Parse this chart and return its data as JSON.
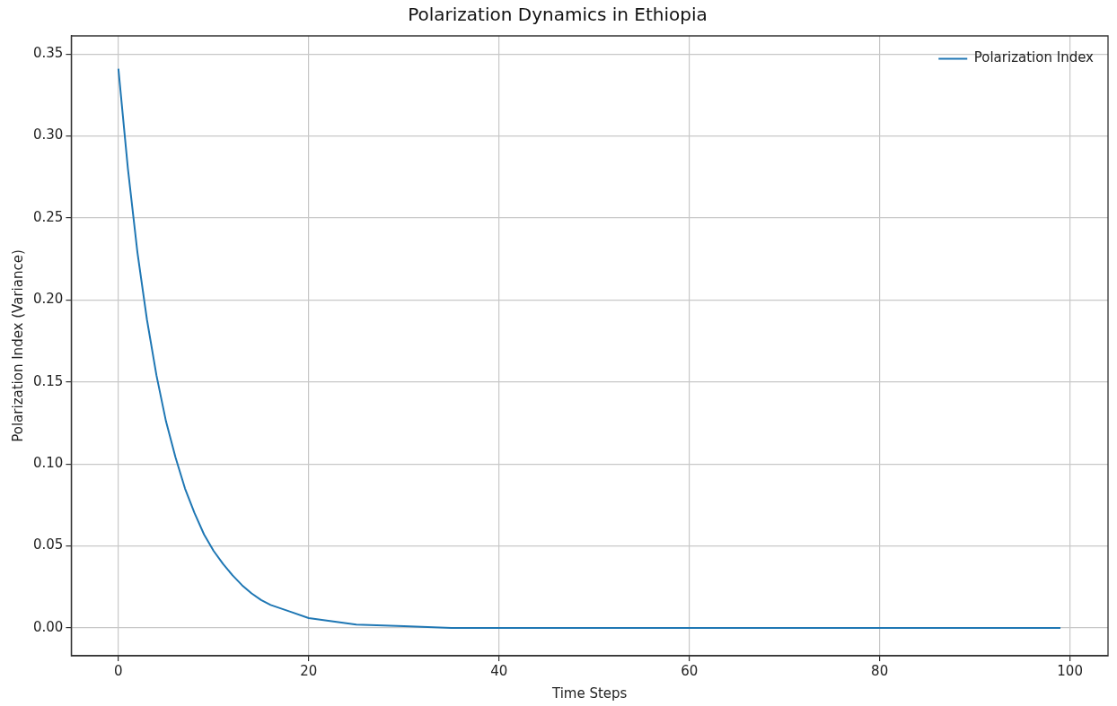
{
  "chart_data": {
    "type": "line",
    "title": "Polarization Dynamics in Ethiopia",
    "xlabel": "Time Steps",
    "ylabel": "Polarization Index (Variance)",
    "x": [
      0,
      1,
      2,
      3,
      4,
      5,
      6,
      7,
      8,
      9,
      10,
      11,
      12,
      13,
      14,
      15,
      16,
      18,
      20,
      25,
      30,
      35,
      40,
      60,
      80,
      99
    ],
    "series": [
      {
        "name": "Polarization Index",
        "color": "#1f77b4",
        "values": [
          0.341,
          0.28,
          0.229,
          0.188,
          0.154,
          0.126,
          0.104,
          0.085,
          0.07,
          0.057,
          0.047,
          0.039,
          0.032,
          0.026,
          0.021,
          0.017,
          0.014,
          0.01,
          0.006,
          0.002,
          0.001,
          0.0,
          0.0,
          0.0,
          0.0,
          0.0
        ]
      }
    ],
    "xlim": [
      -4.95,
      104
    ],
    "xticks": [
      0,
      20,
      40,
      60,
      80,
      100
    ],
    "ylim": [
      -0.017,
      0.361
    ],
    "yticks": [
      {
        "value": 0,
        "label": "0.00"
      },
      {
        "value": 0.05,
        "label": "0.05"
      },
      {
        "value": 0.1,
        "label": "0.10"
      },
      {
        "value": 0.15,
        "label": "0.15"
      },
      {
        "value": 0.2,
        "label": "0.20"
      },
      {
        "value": 0.25,
        "label": "0.25"
      },
      {
        "value": 0.3,
        "label": "0.30"
      },
      {
        "value": 0.35,
        "label": "0.35"
      }
    ],
    "grid": true,
    "legend": "top right",
    "marker": "none",
    "line_style": "solid"
  }
}
